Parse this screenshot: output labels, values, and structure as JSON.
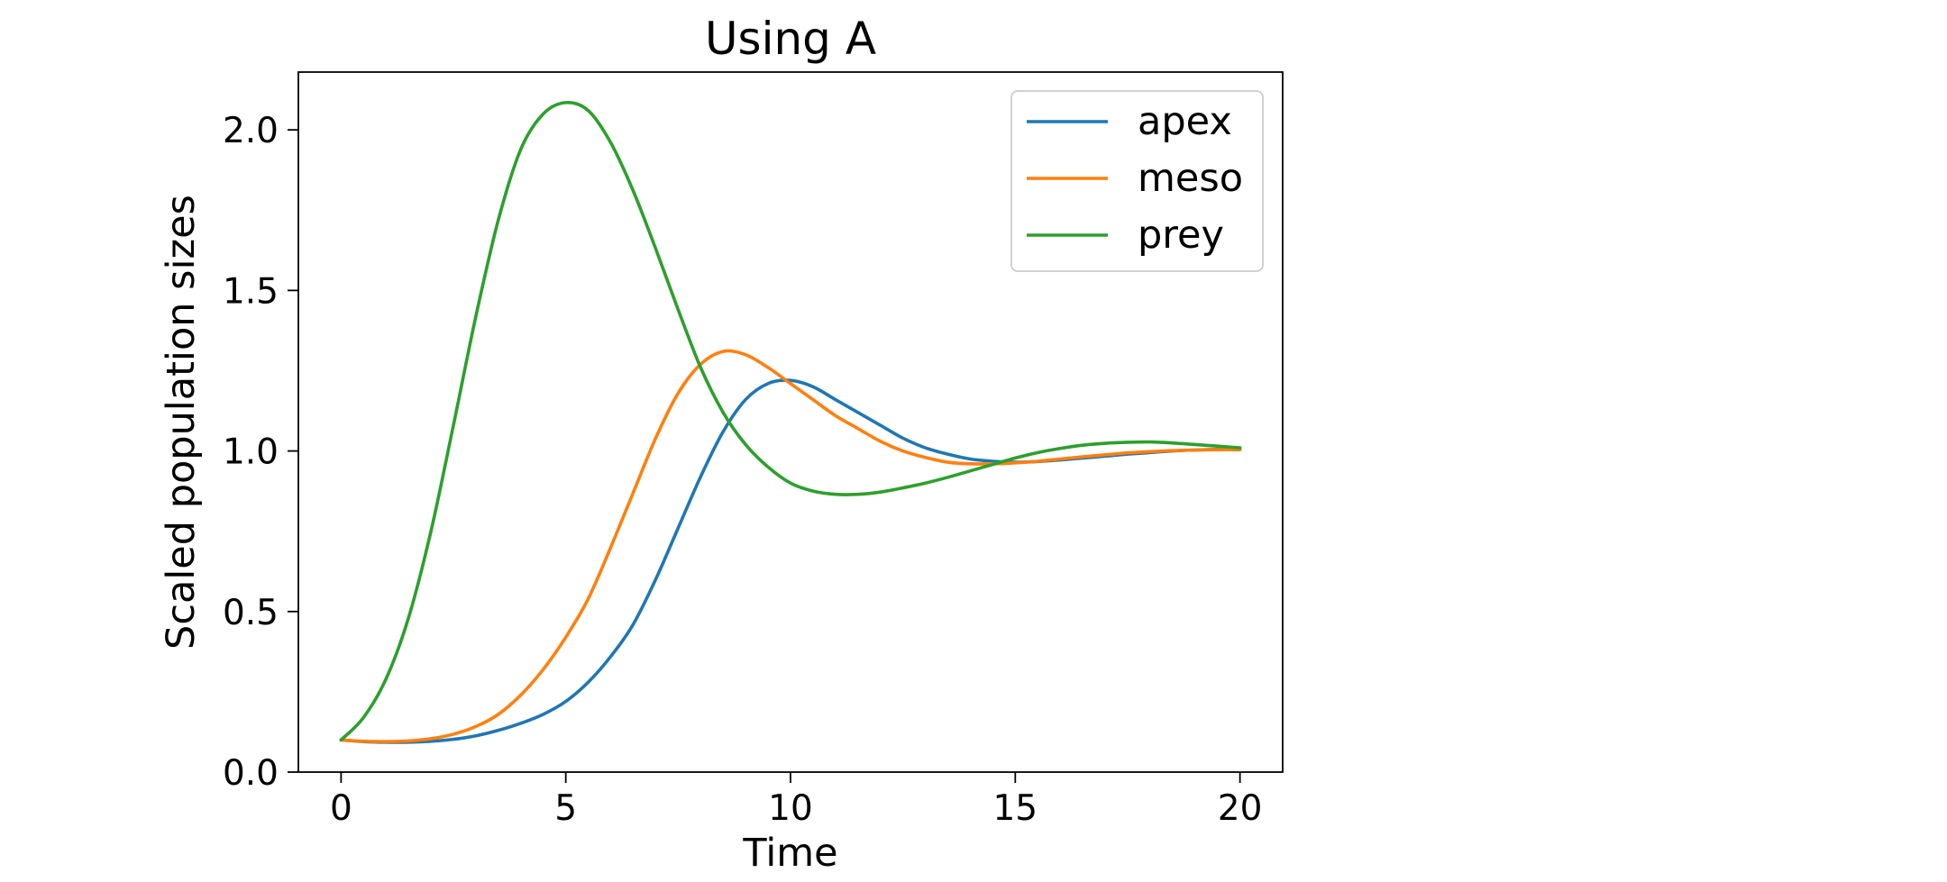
{
  "chart_data": {
    "type": "line",
    "title": "Using A",
    "xlabel": "Time",
    "ylabel": "Scaled population sizes",
    "xlim": [
      -0.95,
      20.95
    ],
    "ylim": [
      0.0,
      2.18
    ],
    "xticks": [
      0,
      5,
      10,
      15,
      20
    ],
    "xtick_labels": [
      "0",
      "5",
      "10",
      "15",
      "20"
    ],
    "yticks": [
      0.0,
      0.5,
      1.0,
      1.5,
      2.0
    ],
    "ytick_labels": [
      "0.0",
      "0.5",
      "1.0",
      "1.5",
      "2.0"
    ],
    "grid": false,
    "legend_position": "top-right",
    "series": [
      {
        "name": "apex",
        "color": "#1f77b4",
        "x": [
          0,
          0.5,
          1,
          1.5,
          2,
          2.5,
          3,
          3.5,
          4,
          4.5,
          5,
          5.5,
          6,
          6.5,
          7,
          7.5,
          8,
          8.5,
          9,
          9.5,
          10,
          10.5,
          11,
          11.5,
          12,
          12.5,
          13,
          13.5,
          14,
          14.5,
          15,
          15.5,
          16,
          16.5,
          17,
          17.5,
          18,
          18.5,
          19,
          19.5,
          20
        ],
        "y": [
          0.1,
          0.095,
          0.093,
          0.093,
          0.096,
          0.102,
          0.113,
          0.13,
          0.152,
          0.18,
          0.22,
          0.28,
          0.36,
          0.46,
          0.6,
          0.76,
          0.92,
          1.06,
          1.16,
          1.21,
          1.22,
          1.2,
          1.16,
          1.12,
          1.08,
          1.04,
          1.01,
          0.99,
          0.975,
          0.968,
          0.965,
          0.967,
          0.972,
          0.978,
          0.984,
          0.99,
          0.995,
          1.0,
          1.003,
          1.005,
          1.005
        ]
      },
      {
        "name": "meso",
        "color": "#ff7f0e",
        "x": [
          0,
          0.5,
          1,
          1.5,
          2,
          2.5,
          3,
          3.5,
          4,
          4.5,
          5,
          5.5,
          6,
          6.5,
          7,
          7.5,
          8,
          8.5,
          9,
          9.5,
          10,
          10.5,
          11,
          11.5,
          12,
          12.5,
          13,
          13.5,
          14,
          14.5,
          15,
          15.5,
          16,
          16.5,
          17,
          17.5,
          18,
          18.5,
          19,
          19.5,
          20
        ],
        "y": [
          0.1,
          0.096,
          0.095,
          0.097,
          0.104,
          0.118,
          0.142,
          0.18,
          0.24,
          0.32,
          0.42,
          0.54,
          0.7,
          0.87,
          1.04,
          1.18,
          1.27,
          1.31,
          1.3,
          1.26,
          1.21,
          1.16,
          1.11,
          1.07,
          1.03,
          1.0,
          0.98,
          0.965,
          0.96,
          0.96,
          0.963,
          0.968,
          0.975,
          0.982,
          0.988,
          0.994,
          0.998,
          1.001,
          1.003,
          1.004,
          1.004
        ]
      },
      {
        "name": "prey",
        "color": "#2ca02c",
        "x": [
          0,
          0.5,
          1,
          1.5,
          2,
          2.5,
          3,
          3.5,
          4,
          4.5,
          5,
          5.5,
          6,
          6.5,
          7,
          7.5,
          8,
          8.5,
          9,
          9.5,
          10,
          10.5,
          11,
          11.5,
          12,
          12.5,
          13,
          13.5,
          14,
          14.5,
          15,
          15.5,
          16,
          16.5,
          17,
          17.5,
          18,
          18.5,
          19,
          19.5,
          20
        ],
        "y": [
          0.1,
          0.17,
          0.29,
          0.48,
          0.75,
          1.08,
          1.42,
          1.72,
          1.94,
          2.05,
          2.085,
          2.06,
          1.96,
          1.81,
          1.63,
          1.44,
          1.26,
          1.12,
          1.02,
          0.95,
          0.9,
          0.875,
          0.865,
          0.865,
          0.872,
          0.885,
          0.9,
          0.918,
          0.938,
          0.958,
          0.978,
          0.995,
          1.008,
          1.018,
          1.024,
          1.027,
          1.028,
          1.025,
          1.02,
          1.015,
          1.01
        ]
      }
    ]
  }
}
